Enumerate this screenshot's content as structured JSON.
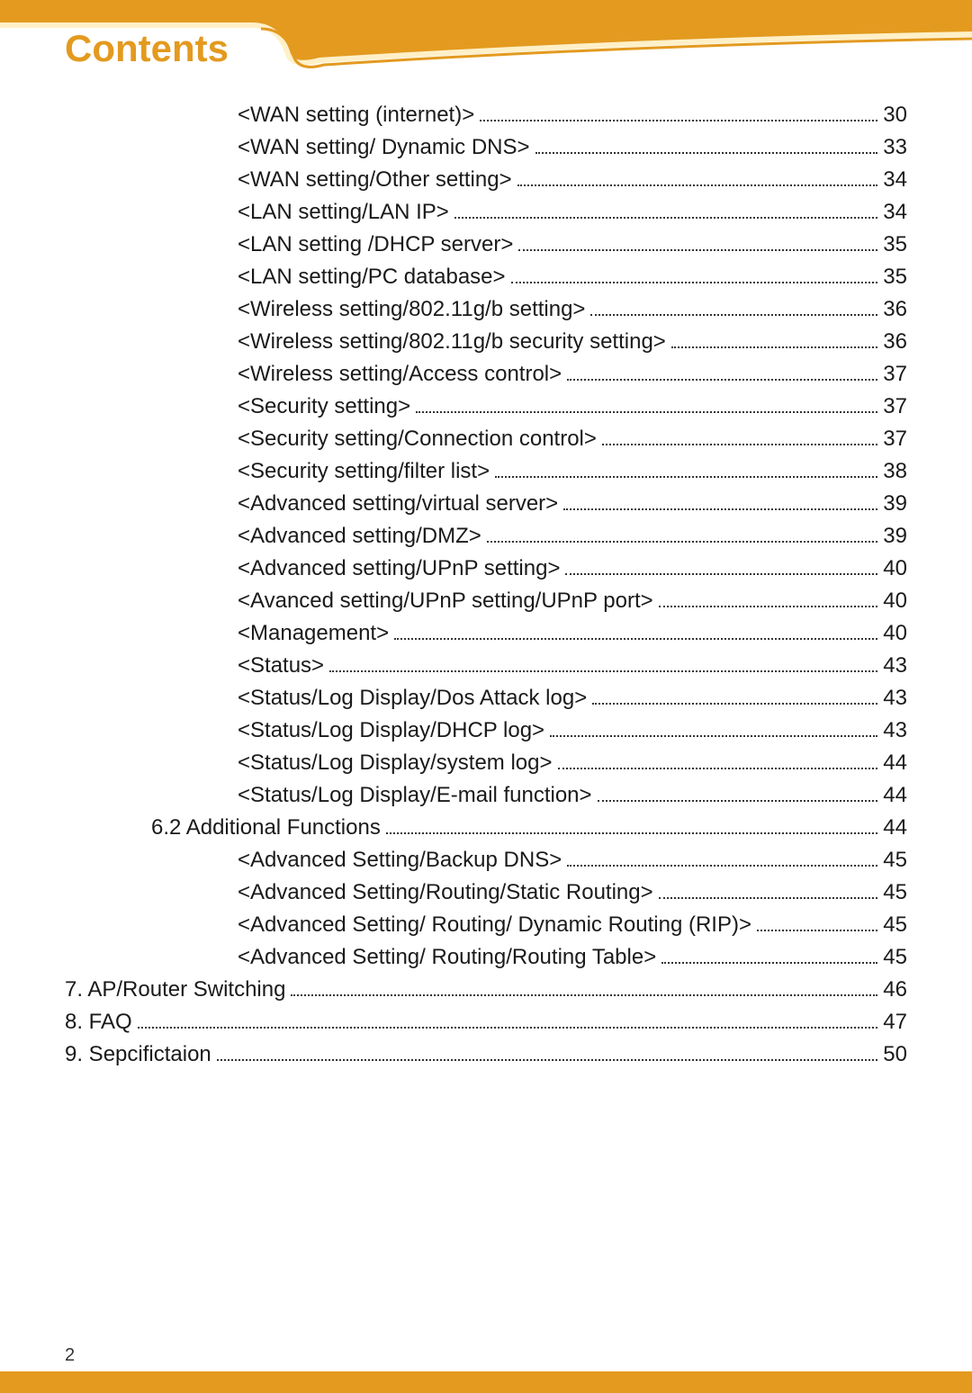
{
  "heading": "Contents",
  "page_number": "2",
  "colors": {
    "accent": "#e39a1f",
    "accent_light": "#fff0c8",
    "text": "#1a1a1a",
    "background": "#ffffff"
  },
  "typography": {
    "heading_fontsize": 42,
    "body_fontsize": 24,
    "heading_weight": "bold"
  },
  "toc": [
    {
      "label": "<WAN setting (internet)>",
      "page": "30",
      "indent": 2
    },
    {
      "label": "<WAN setting/ Dynamic DNS>",
      "page": "33",
      "indent": 2
    },
    {
      "label": "<WAN setting/Other setting>",
      "page": "34",
      "indent": 2
    },
    {
      "label": "<LAN setting/LAN IP>",
      "page": "34",
      "indent": 2
    },
    {
      "label": "<LAN setting /DHCP server>",
      "page": "35",
      "indent": 2
    },
    {
      "label": "<LAN setting/PC database>",
      "page": "35",
      "indent": 2
    },
    {
      "label": "<Wireless setting/802.11g/b setting>",
      "page": "36",
      "indent": 2
    },
    {
      "label": "<Wireless setting/802.11g/b security setting>",
      "page": "36",
      "indent": 2
    },
    {
      "label": "<Wireless setting/Access control>",
      "page": "37",
      "indent": 2
    },
    {
      "label": "<Security setting>",
      "page": "37",
      "indent": 2
    },
    {
      "label": "<Security setting/Connection control>",
      "page": "37",
      "indent": 2
    },
    {
      "label": "<Security setting/filter list>",
      "page": "38",
      "indent": 2
    },
    {
      "label": "<Advanced setting/virtual server>",
      "page": "39",
      "indent": 2
    },
    {
      "label": "<Advanced setting/DMZ>",
      "page": "39",
      "indent": 2
    },
    {
      "label": "<Advanced setting/UPnP setting>",
      "page": "40",
      "indent": 2
    },
    {
      "label": "<Avanced setting/UPnP setting/UPnP port>",
      "page": "40",
      "indent": 2
    },
    {
      "label": "<Management>",
      "page": "40",
      "indent": 2
    },
    {
      "label": "<Status>",
      "page": "43",
      "indent": 2
    },
    {
      "label": "<Status/Log Display/Dos Attack log>",
      "page": "43",
      "indent": 2
    },
    {
      "label": "<Status/Log Display/DHCP log>",
      "page": "43",
      "indent": 2
    },
    {
      "label": "<Status/Log Display/system log>",
      "page": "44",
      "indent": 2
    },
    {
      "label": "<Status/Log Display/E-mail function>",
      "page": "44",
      "indent": 2
    },
    {
      "label": "6.2 Additional Functions",
      "page": "44",
      "indent": 1
    },
    {
      "label": "<Advanced Setting/Backup DNS>",
      "page": "45",
      "indent": 2
    },
    {
      "label": "<Advanced Setting/Routing/Static Routing>",
      "page": "45",
      "indent": 2
    },
    {
      "label": "<Advanced Setting/ Routing/ Dynamic Routing (RIP)>",
      "page": "45",
      "indent": 2
    },
    {
      "label": "<Advanced Setting/ Routing/Routing Table>",
      "page": "45",
      "indent": 2
    },
    {
      "label": "7. AP/Router Switching",
      "page": "46",
      "indent": 0
    },
    {
      "label": "8. FAQ",
      "page": "47",
      "indent": 0
    },
    {
      "label": "9. Sepcifictaion",
      "page": "50",
      "indent": 0
    }
  ]
}
